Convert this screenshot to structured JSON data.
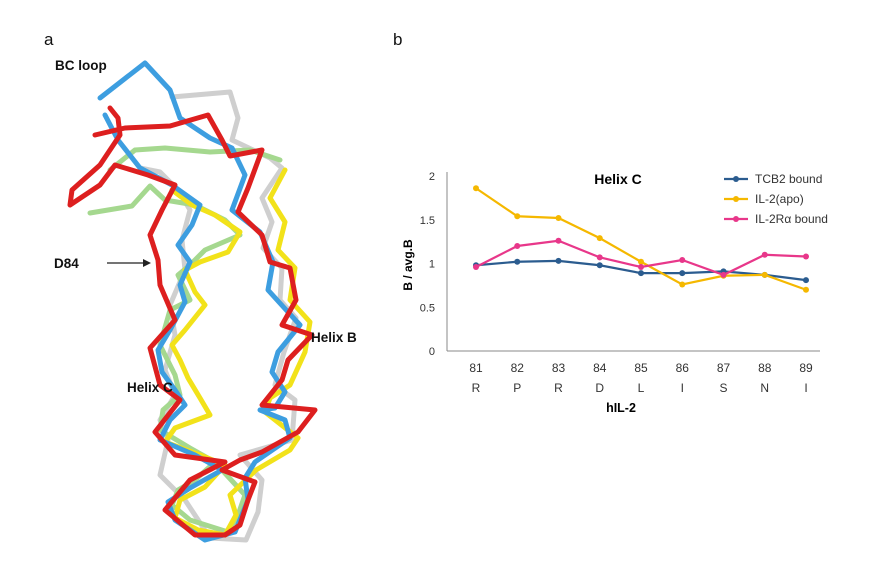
{
  "panels": {
    "a": "a",
    "b": "b"
  },
  "structure_labels": {
    "bc_loop": "BC loop",
    "d84": "D84",
    "helix_b": "Helix B",
    "helix_c": "Helix C"
  },
  "structure_colors": {
    "red": "#dd1f1f",
    "blue": "#3d9ee0",
    "yellow": "#f2e21a",
    "green": "#a5d88f",
    "grey": "#cfcfcf"
  },
  "chart_data": {
    "type": "line",
    "title": "Helix C",
    "xlabel": "hIL-2",
    "ylabel": "B / avg.B",
    "categories": [
      "81",
      "82",
      "83",
      "84",
      "85",
      "86",
      "87",
      "88",
      "89"
    ],
    "residues": [
      "R",
      "P",
      "R",
      "D",
      "L",
      "I",
      "S",
      "N",
      "I"
    ],
    "ylim": [
      0,
      2
    ],
    "yticks": [
      "0",
      "0.5",
      "1",
      "1.5",
      "2"
    ],
    "legend_position": "top-right",
    "grid": false,
    "series": [
      {
        "name": "TCB2 bound",
        "color": "#2b5c8f",
        "values": [
          0.98,
          1.02,
          1.03,
          0.98,
          0.89,
          0.89,
          0.91,
          0.87,
          0.81
        ]
      },
      {
        "name": "IL-2(apo)",
        "color": "#f5b800",
        "values": [
          1.86,
          1.54,
          1.52,
          1.29,
          1.02,
          0.76,
          0.86,
          0.87,
          0.7
        ]
      },
      {
        "name": "IL-2Rα bound",
        "color": "#e8378a",
        "values": [
          0.96,
          1.2,
          1.26,
          1.07,
          0.96,
          1.04,
          0.87,
          1.1,
          1.08
        ]
      }
    ]
  }
}
